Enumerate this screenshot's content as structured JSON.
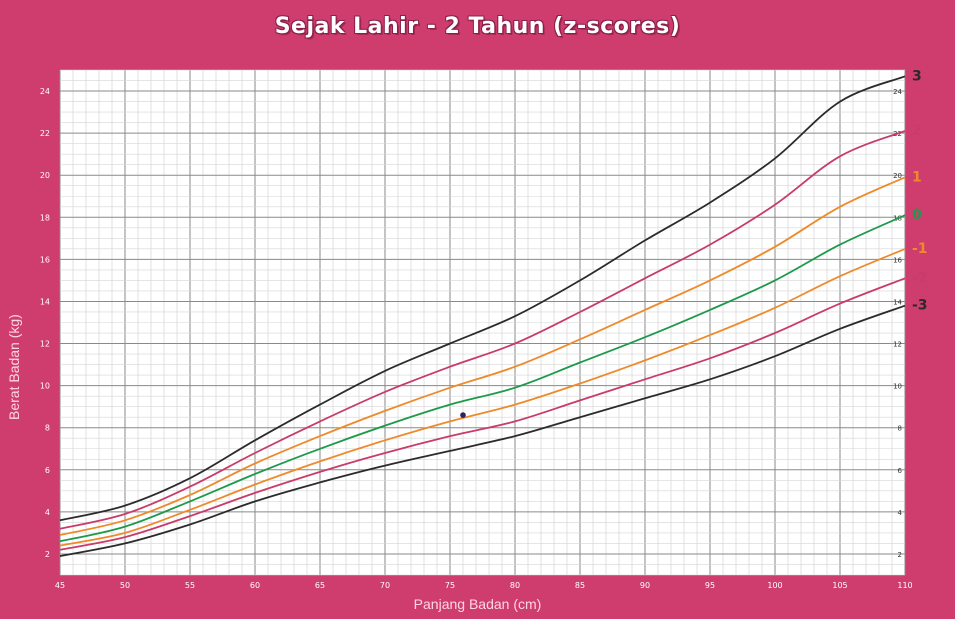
{
  "chart_data": {
    "type": "line",
    "title": "Sejak Lahir - 2 Tahun (z-scores)",
    "xlabel": "Panjang Badan (cm)",
    "ylabel": "Berat Badan (kg)",
    "xlim": [
      45,
      110
    ],
    "ylim": [
      1,
      25
    ],
    "x_ticks": [
      45,
      50,
      55,
      60,
      65,
      70,
      75,
      80,
      85,
      90,
      95,
      100,
      105,
      110
    ],
    "y_ticks": [
      2,
      4,
      6,
      8,
      10,
      12,
      14,
      16,
      18,
      20,
      22,
      24
    ],
    "grid": true,
    "x": [
      45,
      50,
      55,
      60,
      65,
      70,
      75,
      80,
      85,
      90,
      95,
      100,
      105,
      110
    ],
    "series": [
      {
        "name": "3",
        "color": "#2b2b2b",
        "values": [
          3.6,
          4.3,
          5.6,
          7.4,
          9.1,
          10.7,
          12.0,
          13.3,
          15.0,
          16.9,
          18.7,
          20.8,
          23.5,
          24.7
        ]
      },
      {
        "name": "2",
        "color": "#c83c6a",
        "values": [
          3.2,
          3.9,
          5.2,
          6.8,
          8.3,
          9.7,
          10.9,
          12.0,
          13.5,
          15.1,
          16.7,
          18.6,
          20.9,
          22.1
        ]
      },
      {
        "name": "1",
        "color": "#ee8a2a",
        "values": [
          2.9,
          3.6,
          4.8,
          6.3,
          7.6,
          8.8,
          9.9,
          10.9,
          12.2,
          13.6,
          15.0,
          16.6,
          18.5,
          19.9
        ]
      },
      {
        "name": "0",
        "color": "#1c9a4a",
        "values": [
          2.6,
          3.3,
          4.5,
          5.8,
          7.0,
          8.1,
          9.1,
          9.9,
          11.1,
          12.3,
          13.6,
          15.0,
          16.7,
          18.1
        ]
      },
      {
        "name": "-1",
        "color": "#ee8a2a",
        "values": [
          2.4,
          3.0,
          4.1,
          5.3,
          6.4,
          7.4,
          8.3,
          9.1,
          10.1,
          11.2,
          12.4,
          13.7,
          15.2,
          16.5
        ]
      },
      {
        "name": "-2",
        "color": "#c83c6a",
        "values": [
          2.2,
          2.8,
          3.8,
          4.9,
          5.9,
          6.8,
          7.6,
          8.3,
          9.3,
          10.3,
          11.3,
          12.5,
          13.9,
          15.1
        ]
      },
      {
        "name": "-3",
        "color": "#2b2b2b",
        "values": [
          1.9,
          2.5,
          3.4,
          4.5,
          5.4,
          6.2,
          6.9,
          7.6,
          8.5,
          9.4,
          10.3,
          11.4,
          12.7,
          13.8
        ]
      }
    ],
    "point": {
      "x": 76,
      "y": 8.6,
      "color": "#2a2560"
    }
  }
}
